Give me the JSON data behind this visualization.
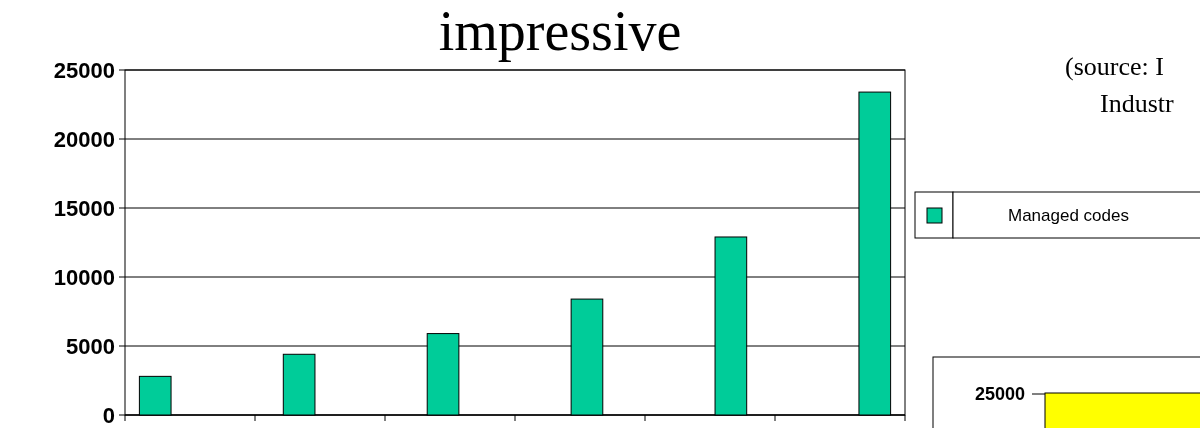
{
  "chart_data": [
    {
      "type": "bar",
      "title": "impressive",
      "annotations": [
        "(source: I",
        "Industr"
      ],
      "categories": [
        null,
        null,
        null,
        null,
        null,
        null
      ],
      "series": [
        {
          "name": "Managed codes",
          "color": "#00cc99",
          "values": [
            2800,
            4400,
            5900,
            8400,
            12900,
            23400
          ]
        }
      ],
      "ylim": [
        0,
        25000
      ],
      "yticks": [
        0,
        5000,
        10000,
        15000,
        20000,
        25000
      ],
      "grid": "y",
      "legend": "right"
    },
    {
      "type": "other",
      "annotations": [
        "25000"
      ]
    }
  ]
}
